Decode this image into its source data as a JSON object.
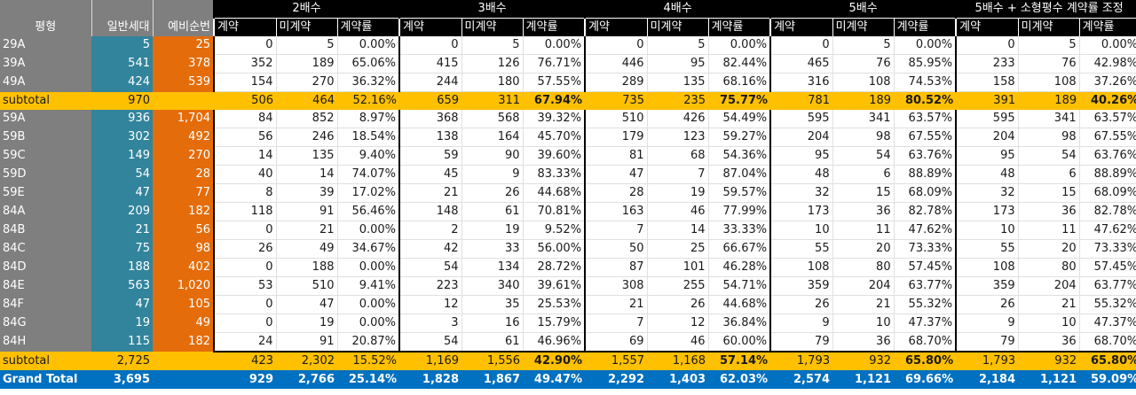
{
  "header": {
    "type_label": "평형",
    "general_label": "일반세대",
    "reserve_label": "예비순번",
    "groups": [
      {
        "title": "2배수",
        "cols": [
          "계약",
          "미계약",
          "계약률"
        ]
      },
      {
        "title": "3배수",
        "cols": [
          "계약",
          "미계약",
          "계약률"
        ]
      },
      {
        "title": "4배수",
        "cols": [
          "계약",
          "미계약",
          "계약률"
        ]
      },
      {
        "title": "5배수",
        "cols": [
          "계약",
          "미계약",
          "계약률"
        ]
      },
      {
        "title": "5배수 + 소형평수 계약률 조정",
        "cols": [
          "계약",
          "미계약",
          "계약률"
        ]
      }
    ]
  },
  "colors": {
    "type_bg": "#7f7f7f",
    "general_bg": "#31849b",
    "reserve_bg": "#e46c0a",
    "subtotal_bg": "#ffc000",
    "grand_total_bg": "#0070c0",
    "header_bg": "#000000"
  },
  "section1": {
    "rows": [
      {
        "type": "29A",
        "gen": "5",
        "res": "25",
        "g": [
          [
            "0",
            "5",
            "0.00%"
          ],
          [
            "0",
            "5",
            "0.00%"
          ],
          [
            "0",
            "5",
            "0.00%"
          ],
          [
            "0",
            "5",
            "0.00%"
          ],
          [
            "0",
            "5",
            "0.00%"
          ]
        ]
      },
      {
        "type": "39A",
        "gen": "541",
        "res": "378",
        "g": [
          [
            "352",
            "189",
            "65.06%"
          ],
          [
            "415",
            "126",
            "76.71%"
          ],
          [
            "446",
            "95",
            "82.44%"
          ],
          [
            "465",
            "76",
            "85.95%"
          ],
          [
            "233",
            "76",
            "42.98%"
          ]
        ]
      },
      {
        "type": "49A",
        "gen": "424",
        "res": "539",
        "g": [
          [
            "154",
            "270",
            "36.32%"
          ],
          [
            "244",
            "180",
            "57.55%"
          ],
          [
            "289",
            "135",
            "68.16%"
          ],
          [
            "316",
            "108",
            "74.53%"
          ],
          [
            "158",
            "108",
            "37.26%"
          ]
        ]
      }
    ],
    "subtotal": {
      "label": "subtotal",
      "gen": "970",
      "res": "",
      "g": [
        [
          "506",
          "464",
          "52.16%"
        ],
        [
          "659",
          "311",
          "67.94%"
        ],
        [
          "735",
          "235",
          "75.77%"
        ],
        [
          "781",
          "189",
          "80.52%"
        ],
        [
          "391",
          "189",
          "40.26%"
        ]
      ]
    }
  },
  "section2": {
    "rows": [
      {
        "type": "59A",
        "gen": "936",
        "res": "1,704",
        "g": [
          [
            "84",
            "852",
            "8.97%"
          ],
          [
            "368",
            "568",
            "39.32%"
          ],
          [
            "510",
            "426",
            "54.49%"
          ],
          [
            "595",
            "341",
            "63.57%"
          ],
          [
            "595",
            "341",
            "63.57%"
          ]
        ]
      },
      {
        "type": "59B",
        "gen": "302",
        "res": "492",
        "g": [
          [
            "56",
            "246",
            "18.54%"
          ],
          [
            "138",
            "164",
            "45.70%"
          ],
          [
            "179",
            "123",
            "59.27%"
          ],
          [
            "204",
            "98",
            "67.55%"
          ],
          [
            "204",
            "98",
            "67.55%"
          ]
        ]
      },
      {
        "type": "59C",
        "gen": "149",
        "res": "270",
        "g": [
          [
            "14",
            "135",
            "9.40%"
          ],
          [
            "59",
            "90",
            "39.60%"
          ],
          [
            "81",
            "68",
            "54.36%"
          ],
          [
            "95",
            "54",
            "63.76%"
          ],
          [
            "95",
            "54",
            "63.76%"
          ]
        ]
      },
      {
        "type": "59D",
        "gen": "54",
        "res": "28",
        "g": [
          [
            "40",
            "14",
            "74.07%"
          ],
          [
            "45",
            "9",
            "83.33%"
          ],
          [
            "47",
            "7",
            "87.04%"
          ],
          [
            "48",
            "6",
            "88.89%"
          ],
          [
            "48",
            "6",
            "88.89%"
          ]
        ]
      },
      {
        "type": "59E",
        "gen": "47",
        "res": "77",
        "g": [
          [
            "8",
            "39",
            "17.02%"
          ],
          [
            "21",
            "26",
            "44.68%"
          ],
          [
            "28",
            "19",
            "59.57%"
          ],
          [
            "32",
            "15",
            "68.09%"
          ],
          [
            "32",
            "15",
            "68.09%"
          ]
        ]
      },
      {
        "type": "84A",
        "gen": "209",
        "res": "182",
        "g": [
          [
            "118",
            "91",
            "56.46%"
          ],
          [
            "148",
            "61",
            "70.81%"
          ],
          [
            "163",
            "46",
            "77.99%"
          ],
          [
            "173",
            "36",
            "82.78%"
          ],
          [
            "173",
            "36",
            "82.78%"
          ]
        ]
      },
      {
        "type": "84B",
        "gen": "21",
        "res": "56",
        "g": [
          [
            "0",
            "21",
            "0.00%"
          ],
          [
            "2",
            "19",
            "9.52%"
          ],
          [
            "7",
            "14",
            "33.33%"
          ],
          [
            "10",
            "11",
            "47.62%"
          ],
          [
            "10",
            "11",
            "47.62%"
          ]
        ]
      },
      {
        "type": "84C",
        "gen": "75",
        "res": "98",
        "g": [
          [
            "26",
            "49",
            "34.67%"
          ],
          [
            "42",
            "33",
            "56.00%"
          ],
          [
            "50",
            "25",
            "66.67%"
          ],
          [
            "55",
            "20",
            "73.33%"
          ],
          [
            "55",
            "20",
            "73.33%"
          ]
        ]
      },
      {
        "type": "84D",
        "gen": "188",
        "res": "402",
        "g": [
          [
            "0",
            "188",
            "0.00%"
          ],
          [
            "54",
            "134",
            "28.72%"
          ],
          [
            "87",
            "101",
            "46.28%"
          ],
          [
            "108",
            "80",
            "57.45%"
          ],
          [
            "108",
            "80",
            "57.45%"
          ]
        ]
      },
      {
        "type": "84E",
        "gen": "563",
        "res": "1,020",
        "g": [
          [
            "53",
            "510",
            "9.41%"
          ],
          [
            "223",
            "340",
            "39.61%"
          ],
          [
            "308",
            "255",
            "54.71%"
          ],
          [
            "359",
            "204",
            "63.77%"
          ],
          [
            "359",
            "204",
            "63.77%"
          ]
        ]
      },
      {
        "type": "84F",
        "gen": "47",
        "res": "105",
        "g": [
          [
            "0",
            "47",
            "0.00%"
          ],
          [
            "12",
            "35",
            "25.53%"
          ],
          [
            "21",
            "26",
            "44.68%"
          ],
          [
            "26",
            "21",
            "55.32%"
          ],
          [
            "26",
            "21",
            "55.32%"
          ]
        ]
      },
      {
        "type": "84G",
        "gen": "19",
        "res": "49",
        "g": [
          [
            "0",
            "19",
            "0.00%"
          ],
          [
            "3",
            "16",
            "15.79%"
          ],
          [
            "7",
            "12",
            "36.84%"
          ],
          [
            "9",
            "10",
            "47.37%"
          ],
          [
            "9",
            "10",
            "47.37%"
          ]
        ]
      },
      {
        "type": "84H",
        "gen": "115",
        "res": "182",
        "g": [
          [
            "24",
            "91",
            "20.87%"
          ],
          [
            "54",
            "61",
            "46.96%"
          ],
          [
            "69",
            "46",
            "60.00%"
          ],
          [
            "79",
            "36",
            "68.70%"
          ],
          [
            "79",
            "36",
            "68.70%"
          ]
        ]
      }
    ],
    "subtotal": {
      "label": "subtotal",
      "gen": "2,725",
      "res": "",
      "g": [
        [
          "423",
          "2,302",
          "15.52%"
        ],
        [
          "1,169",
          "1,556",
          "42.90%"
        ],
        [
          "1,557",
          "1,168",
          "57.14%"
        ],
        [
          "1,793",
          "932",
          "65.80%"
        ],
        [
          "1,793",
          "932",
          "65.80%"
        ]
      ]
    }
  },
  "grand_total": {
    "label": "Grand Total",
    "gen": "3,695",
    "res": "",
    "g": [
      [
        "929",
        "2,766",
        "25.14%"
      ],
      [
        "1,828",
        "1,867",
        "49.47%"
      ],
      [
        "2,292",
        "1,403",
        "62.03%"
      ],
      [
        "2,574",
        "1,121",
        "69.66%"
      ],
      [
        "2,184",
        "1,121",
        "59.09%"
      ]
    ]
  }
}
